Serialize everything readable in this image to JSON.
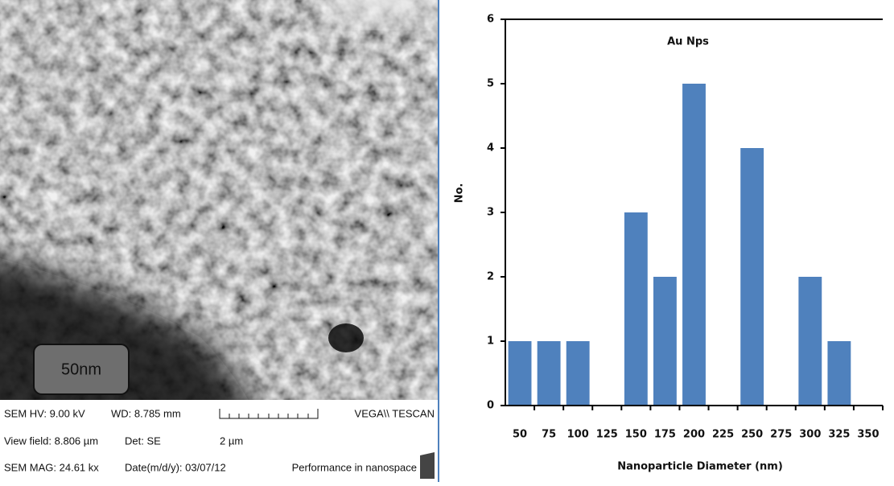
{
  "sem": {
    "hv": "SEM HV: 9.00 kV",
    "wd": "WD: 8.785 mm",
    "brand": "VEGA\\\\ TESCAN",
    "view_field": "View field: 8.806 µm",
    "det": "Det: SE",
    "scale": "2 µm",
    "mag": "SEM MAG: 24.61 kx",
    "date": "Date(m/d/y): 03/07/12",
    "slogan": "Performance in nanospace",
    "scale_box": "50nm"
  },
  "chart_data": {
    "type": "bar",
    "title": "Au Nps",
    "x_label": "Nanoparticle Diameter (nm)",
    "y_label": "No.",
    "categories": [
      "50",
      "75",
      "100",
      "125",
      "150",
      "175",
      "200",
      "225",
      "250",
      "275",
      "300",
      "325",
      "350"
    ],
    "values": [
      1,
      1,
      1,
      0,
      3,
      2,
      5,
      0,
      4,
      0,
      2,
      1,
      0
    ],
    "color": "#4f81bd",
    "ylim": [
      0,
      6
    ],
    "yticks": [
      0,
      1,
      2,
      3,
      4,
      5,
      6
    ],
    "grid": false
  }
}
